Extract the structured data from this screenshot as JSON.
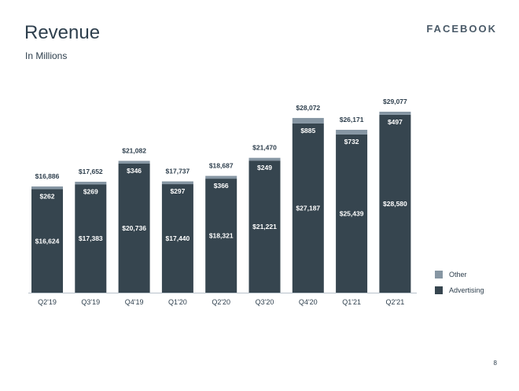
{
  "header": {
    "title": "Revenue",
    "subtitle": "In Millions",
    "brand": "FACEBOOK"
  },
  "page_number": "8",
  "colors": {
    "advertising": "#36454f",
    "other": "#8696a3",
    "text": "#2e3f4d"
  },
  "chart_data": {
    "type": "bar",
    "stacked": true,
    "categories": [
      "Q2'19",
      "Q3'19",
      "Q4'19",
      "Q1'20",
      "Q2'20",
      "Q3'20",
      "Q4'20",
      "Q1'21",
      "Q2'21"
    ],
    "series": [
      {
        "name": "Advertising",
        "values": [
          16624,
          17383,
          20736,
          17440,
          18321,
          21221,
          27187,
          25439,
          28580
        ],
        "labels": [
          "$16,624",
          "$17,383",
          "$20,736",
          "$17,440",
          "$18,321",
          "$21,221",
          "$27,187",
          "$25,439",
          "$28,580"
        ]
      },
      {
        "name": "Other",
        "values": [
          262,
          269,
          346,
          297,
          366,
          249,
          885,
          732,
          497
        ],
        "labels": [
          "$262",
          "$269",
          "$346",
          "$297",
          "$366",
          "$249",
          "$885",
          "$732",
          "$497"
        ]
      }
    ],
    "totals": [
      16886,
      17652,
      21082,
      17737,
      18687,
      21470,
      28072,
      26171,
      29077
    ],
    "total_labels": [
      "$16,886",
      "$17,652",
      "$21,082",
      "$17,737",
      "$18,687",
      "$21,470",
      "$28,072",
      "$26,171",
      "$29,077"
    ],
    "legend": [
      "Other",
      "Advertising"
    ],
    "legend_position": "right",
    "ylim": [
      0,
      29077
    ],
    "grid": false
  }
}
